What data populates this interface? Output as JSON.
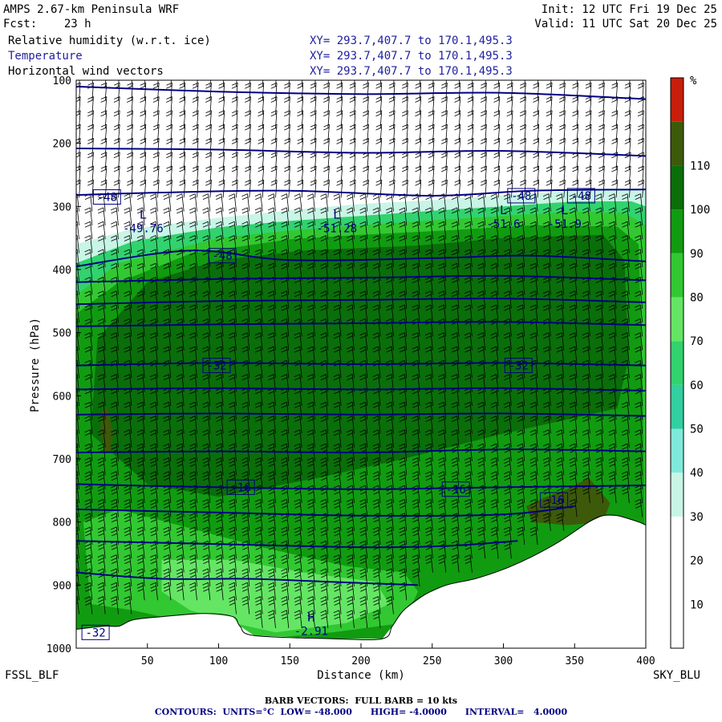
{
  "header": {
    "model": "AMPS 2.67-km Peninsula WRF",
    "forecast": "Fcst:    23 h",
    "init": "Init: 12 UTC Fri 19 Dec 25",
    "valid": "Valid: 11 UTC Sat 20 Dec 25",
    "fields": [
      {
        "name": "Relative humidity (w.r.t. ice)",
        "xy": "XY= 293.7,407.7 to 170.1,495.3"
      },
      {
        "name": "Temperature",
        "xy": "XY= 293.7,407.7 to 170.1,495.3"
      },
      {
        "name": "Horizontal wind vectors",
        "xy": "XY= 293.7,407.7 to 170.1,495.3"
      }
    ]
  },
  "endpoints": {
    "left": "FSSL_BLF",
    "right": "SKY_BLU"
  },
  "footer": {
    "barb": "BARB VECTORS:  FULL BARB = 10 kts",
    "contours": "CONTOURS:  UNITS=°C  LOW= -48.000      HIGH= -4.0000      INTERVAL=   4.0000"
  },
  "colors": {
    "isotherm": "#000080",
    "terrain": "#ffffff",
    "barb": "#000000"
  },
  "chart_data": {
    "type": "heatmap",
    "xlabel": "Distance (km)",
    "ylabel": "Pressure (hPa)",
    "xlim": [
      0,
      400
    ],
    "ylim": [
      1000,
      100
    ],
    "x_ticks": [
      50,
      100,
      150,
      200,
      250,
      300,
      350,
      400
    ],
    "y_ticks": [
      100,
      200,
      300,
      400,
      500,
      600,
      700,
      800,
      900,
      1000
    ],
    "colorbar": {
      "unit": "%",
      "tick_labels": [
        10,
        20,
        30,
        40,
        50,
        60,
        70,
        80,
        90,
        100,
        110
      ],
      "levels": [
        0,
        10,
        20,
        30,
        40,
        50,
        60,
        70,
        80,
        90,
        100,
        110,
        120
      ],
      "colors": [
        "#ffffff",
        "#ffffff",
        "#ffffff",
        "#c8f5e6",
        "#7feadb",
        "#32cfa0",
        "#32d26e",
        "#64e664",
        "#32c832",
        "#119b11",
        "#0a6e0a",
        "#3c5a0a",
        "#c81e0a"
      ]
    },
    "rh_regions": [
      {
        "level": 30,
        "points": [
          [
            0,
            360
          ],
          [
            40,
            335
          ],
          [
            100,
            318
          ],
          [
            150,
            306
          ],
          [
            200,
            296
          ],
          [
            250,
            290
          ],
          [
            300,
            282
          ],
          [
            350,
            275
          ],
          [
            400,
            272
          ],
          [
            400,
            1000
          ],
          [
            0,
            1000
          ]
        ]
      },
      {
        "level": 60,
        "points": [
          [
            0,
            390
          ],
          [
            40,
            355
          ],
          [
            100,
            333
          ],
          [
            150,
            323
          ],
          [
            200,
            315
          ],
          [
            250,
            307
          ],
          [
            300,
            300
          ],
          [
            350,
            292
          ],
          [
            390,
            292
          ],
          [
            400,
            300
          ],
          [
            400,
            1000
          ],
          [
            0,
            1000
          ]
        ]
      },
      {
        "level": 80,
        "points": [
          [
            0,
            440
          ],
          [
            30,
            390
          ],
          [
            100,
            350
          ],
          [
            150,
            338
          ],
          [
            200,
            330
          ],
          [
            250,
            322
          ],
          [
            300,
            315
          ],
          [
            350,
            308
          ],
          [
            385,
            310
          ],
          [
            400,
            330
          ],
          [
            400,
            1000
          ],
          [
            0,
            1000
          ]
        ]
      },
      {
        "level": 90,
        "points": [
          [
            0,
            470
          ],
          [
            30,
            420
          ],
          [
            80,
            375
          ],
          [
            150,
            352
          ],
          [
            200,
            345
          ],
          [
            260,
            338
          ],
          [
            320,
            330
          ],
          [
            380,
            332
          ],
          [
            395,
            360
          ],
          [
            398,
            600
          ],
          [
            400,
            1000
          ],
          [
            0,
            1000
          ]
        ]
      },
      {
        "level": 100,
        "points": [
          [
            15,
            510
          ],
          [
            50,
            420
          ],
          [
            100,
            385
          ],
          [
            160,
            370
          ],
          [
            240,
            362
          ],
          [
            300,
            350
          ],
          [
            370,
            345
          ],
          [
            385,
            385
          ],
          [
            388,
            540
          ],
          [
            380,
            620
          ],
          [
            300,
            660
          ],
          [
            230,
            700
          ],
          [
            170,
            730
          ],
          [
            100,
            760
          ],
          [
            50,
            740
          ],
          [
            10,
            660
          ]
        ]
      },
      {
        "level": 80,
        "points": [
          [
            5,
            800
          ],
          [
            30,
            780
          ],
          [
            80,
            810
          ],
          [
            130,
            840
          ],
          [
            190,
            870
          ],
          [
            230,
            880
          ],
          [
            240,
            910
          ],
          [
            230,
            960
          ],
          [
            180,
            975
          ],
          [
            130,
            985
          ],
          [
            80,
            960
          ],
          [
            40,
            940
          ],
          [
            10,
            930
          ]
        ]
      },
      {
        "level": 70,
        "points": [
          [
            60,
            860
          ],
          [
            110,
            860
          ],
          [
            160,
            880
          ],
          [
            210,
            895
          ],
          [
            220,
            930
          ],
          [
            190,
            960
          ],
          [
            140,
            975
          ],
          [
            110,
            960
          ],
          [
            80,
            940
          ],
          [
            60,
            910
          ]
        ]
      },
      {
        "level": 110,
        "points": [
          [
            18,
            625
          ],
          [
            22,
            618
          ],
          [
            26,
            660
          ],
          [
            24,
            690
          ],
          [
            20,
            690
          ],
          [
            17,
            655
          ]
        ]
      },
      {
        "level": 110,
        "points": [
          [
            316,
            775
          ],
          [
            330,
            760
          ],
          [
            345,
            748
          ],
          [
            360,
            730
          ],
          [
            375,
            770
          ],
          [
            370,
            800
          ],
          [
            345,
            805
          ],
          [
            320,
            800
          ]
        ]
      }
    ],
    "terrain_surface": [
      [
        0,
        970
      ],
      [
        20,
        965
      ],
      [
        30,
        965
      ],
      [
        40,
        955
      ],
      [
        60,
        950
      ],
      [
        90,
        945
      ],
      [
        110,
        950
      ],
      [
        115,
        965
      ],
      [
        125,
        980
      ],
      [
        180,
        985
      ],
      [
        215,
        985
      ],
      [
        222,
        965
      ],
      [
        230,
        940
      ],
      [
        245,
        915
      ],
      [
        260,
        900
      ],
      [
        280,
        890
      ],
      [
        300,
        875
      ],
      [
        320,
        855
      ],
      [
        340,
        830
      ],
      [
        360,
        800
      ],
      [
        370,
        790
      ],
      [
        380,
        790
      ],
      [
        395,
        800
      ],
      [
        400,
        805
      ]
    ],
    "isotherms": [
      {
        "value": -48,
        "points": [
          [
            0,
            110
          ],
          [
            100,
            118
          ],
          [
            200,
            122
          ],
          [
            300,
            120
          ],
          [
            400,
            130
          ]
        ]
      },
      {
        "value": -48,
        "points": [
          [
            0,
            208
          ],
          [
            100,
            210
          ],
          [
            200,
            215
          ],
          [
            300,
            212
          ],
          [
            400,
            220
          ]
        ]
      },
      {
        "value": -48,
        "points": [
          [
            0,
            282
          ],
          [
            60,
            278
          ],
          [
            150,
            275
          ],
          [
            250,
            283
          ],
          [
            320,
            275
          ],
          [
            400,
            273
          ]
        ]
      },
      {
        "value": -48,
        "points": [
          [
            0,
            395
          ],
          [
            80,
            370
          ],
          [
            150,
            385
          ],
          [
            250,
            382
          ],
          [
            320,
            378
          ],
          [
            400,
            387
          ]
        ]
      },
      {
        "value": -44,
        "points": [
          [
            0,
            420
          ],
          [
            100,
            415
          ],
          [
            200,
            413
          ],
          [
            300,
            410
          ],
          [
            400,
            417
          ]
        ]
      },
      {
        "value": -40,
        "points": [
          [
            0,
            455
          ],
          [
            100,
            450
          ],
          [
            200,
            448
          ],
          [
            300,
            446
          ],
          [
            400,
            452
          ]
        ]
      },
      {
        "value": -36,
        "points": [
          [
            0,
            490
          ],
          [
            100,
            487
          ],
          [
            200,
            485
          ],
          [
            300,
            483
          ],
          [
            400,
            488
          ]
        ]
      },
      {
        "value": -32,
        "points": [
          [
            0,
            552
          ],
          [
            100,
            548
          ],
          [
            200,
            550
          ],
          [
            300,
            548
          ],
          [
            400,
            552
          ]
        ]
      },
      {
        "value": -28,
        "points": [
          [
            0,
            590
          ],
          [
            100,
            588
          ],
          [
            200,
            590
          ],
          [
            300,
            588
          ],
          [
            400,
            592
          ]
        ]
      },
      {
        "value": -24,
        "points": [
          [
            0,
            630
          ],
          [
            100,
            628
          ],
          [
            200,
            630
          ],
          [
            300,
            628
          ],
          [
            400,
            632
          ]
        ]
      },
      {
        "value": -20,
        "points": [
          [
            0,
            690
          ],
          [
            100,
            688
          ],
          [
            200,
            690
          ],
          [
            300,
            685
          ],
          [
            400,
            688
          ]
        ]
      },
      {
        "value": -16,
        "points": [
          [
            0,
            740
          ],
          [
            100,
            745
          ],
          [
            200,
            748
          ],
          [
            300,
            745
          ],
          [
            400,
            742
          ]
        ]
      },
      {
        "value": -12,
        "points": [
          [
            0,
            780
          ],
          [
            100,
            785
          ],
          [
            200,
            790
          ],
          [
            300,
            788
          ],
          [
            350,
            775
          ]
        ]
      },
      {
        "value": -8,
        "points": [
          [
            0,
            830
          ],
          [
            100,
            835
          ],
          [
            200,
            840
          ],
          [
            260,
            838
          ],
          [
            310,
            830
          ]
        ]
      },
      {
        "value": -4,
        "points": [
          [
            0,
            880
          ],
          [
            60,
            890
          ],
          [
            120,
            890
          ],
          [
            180,
            895
          ],
          [
            240,
            900
          ]
        ]
      }
    ],
    "contour_labels": [
      {
        "text": "-48",
        "x": 12,
        "p": 285
      },
      {
        "text": "-48",
        "x": 303,
        "p": 283
      },
      {
        "text": "-48",
        "x": 345,
        "p": 283
      },
      {
        "text": "-48",
        "x": 93,
        "p": 378
      },
      {
        "text": "-32",
        "x": 89,
        "p": 552
      },
      {
        "text": "-32",
        "x": 301,
        "p": 552
      },
      {
        "text": "-16",
        "x": 106,
        "p": 745
      },
      {
        "text": "-16",
        "x": 257,
        "p": 748
      },
      {
        "text": "-16",
        "x": 326,
        "p": 765
      },
      {
        "text": "-32",
        "x": 4,
        "p": 975
      }
    ],
    "extrema": [
      {
        "symbol": "L",
        "value": "-49.76",
        "x": 47,
        "p": 337
      },
      {
        "symbol": "L",
        "value": "-51.28",
        "x": 183,
        "p": 337
      },
      {
        "symbol": "L",
        "value": "-51.6",
        "x": 300,
        "p": 330
      },
      {
        "symbol": "L",
        "value": "-51.9",
        "x": 343,
        "p": 330
      },
      {
        "symbol": "H",
        "value": "-2.91",
        "x": 165,
        "p": 975
      }
    ]
  }
}
